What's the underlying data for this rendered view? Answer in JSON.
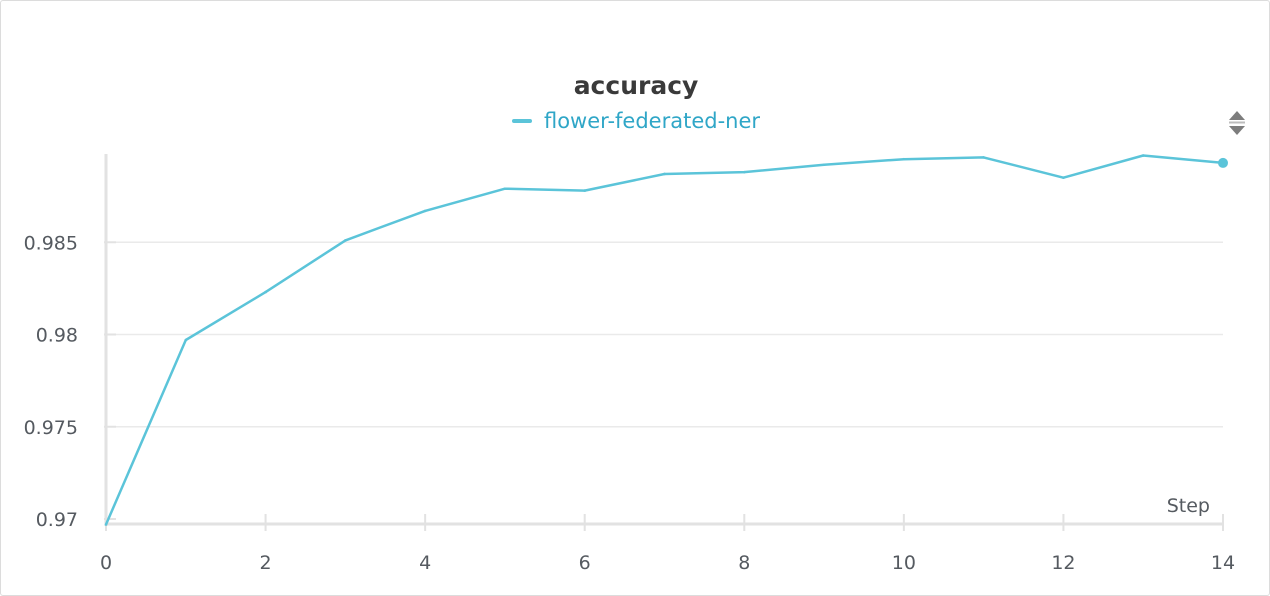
{
  "panel": {
    "title": "accuracy",
    "scroll_icon": "up-down-arrows-icon"
  },
  "colors": {
    "series": "#5bc4d9",
    "grid": "#eaeaea",
    "axis": "#e2e2e2",
    "text": "#555a60",
    "title": "#3a3a3a"
  },
  "chart_data": {
    "type": "line",
    "title": "accuracy",
    "xlabel": "Step",
    "ylabel": "",
    "xlim": [
      0,
      14
    ],
    "ylim": [
      0.97,
      0.99
    ],
    "x_ticks": [
      0,
      2,
      4,
      6,
      8,
      10,
      12,
      14
    ],
    "x_tick_labels": [
      "0",
      "2",
      "4",
      "6",
      "8",
      "10",
      "12",
      "14"
    ],
    "y_ticks": [
      0.97,
      0.975,
      0.98,
      0.985
    ],
    "y_tick_labels": [
      "0.97",
      "0.975",
      "0.98",
      "0.985"
    ],
    "grid": true,
    "legend": "top-center",
    "series": [
      {
        "name": "flower-federated-ner",
        "x": [
          0,
          1,
          2,
          3,
          4,
          5,
          6,
          7,
          8,
          9,
          10,
          11,
          12,
          13,
          14
        ],
        "values": [
          0.9697,
          0.9797,
          0.9823,
          0.9851,
          0.9867,
          0.9879,
          0.9878,
          0.9887,
          0.9888,
          0.9892,
          0.9895,
          0.9896,
          0.9885,
          0.9897,
          0.9893
        ]
      }
    ]
  }
}
